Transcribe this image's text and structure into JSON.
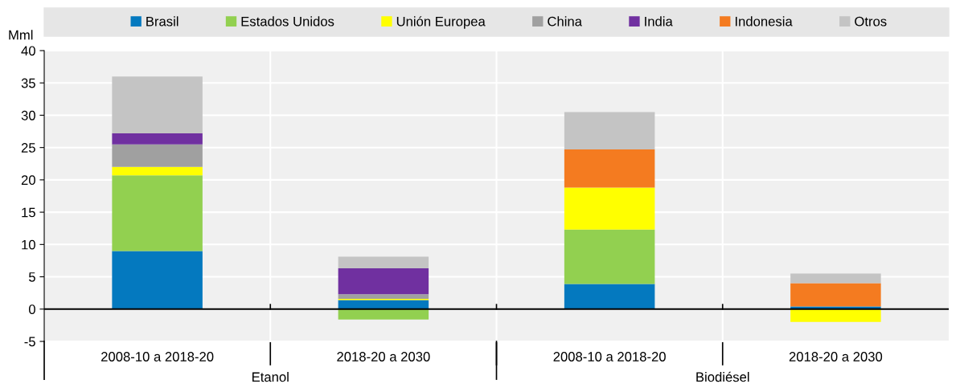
{
  "chart_data": {
    "type": "bar",
    "stacked": true,
    "ylabel": "Mml",
    "categories": [
      "2008-10 a 2018-20",
      "2018-20 a 2030",
      "2008-10 a 2018-20",
      "2018-20 a 2030"
    ],
    "series": [
      {
        "name": "Brasil",
        "color": "#0479bf",
        "values": [
          9.0,
          1.4,
          3.9,
          0.4
        ]
      },
      {
        "name": "Estados Unidos",
        "color": "#92d050",
        "values": [
          11.7,
          -1.6,
          8.4,
          0
        ]
      },
      {
        "name": "Unión Europea",
        "color": "#ffff00",
        "values": [
          1.3,
          0.2,
          6.5,
          -2.0
        ]
      },
      {
        "name": "China",
        "color": "#a0a0a0",
        "values": [
          3.5,
          0.7,
          0,
          0
        ]
      },
      {
        "name": "India",
        "color": "#7030a0",
        "values": [
          1.7,
          4.0,
          0,
          0
        ]
      },
      {
        "name": "Indonesia",
        "color": "#f47b20",
        "values": [
          0,
          0,
          5.9,
          3.6
        ]
      },
      {
        "name": "Otros",
        "color": "#c4c4c4",
        "values": [
          8.8,
          1.8,
          5.8,
          1.5
        ]
      }
    ],
    "ylim": [
      -5,
      40
    ],
    "yticks": [
      -5,
      0,
      5,
      10,
      15,
      20,
      25,
      30,
      35,
      40
    ],
    "grid": "y",
    "legend": "top",
    "annotations": [
      "Etanol",
      "Biodiésel"
    ]
  }
}
